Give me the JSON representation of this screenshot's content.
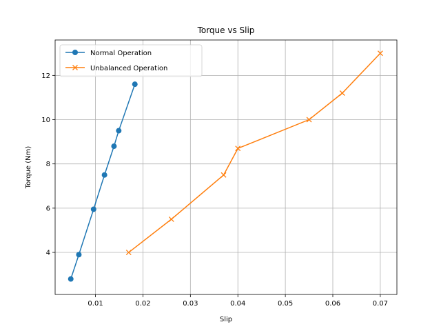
{
  "chart_data": {
    "type": "line",
    "title": "Torque vs Slip",
    "xlabel": "Slip",
    "ylabel": "Torque (Nm)",
    "xlim": [
      0.0015,
      0.0735
    ],
    "ylim": [
      2.1,
      13.6
    ],
    "xticks": [
      0.01,
      0.02,
      0.03,
      0.04,
      0.05,
      0.06,
      0.07
    ],
    "xtick_labels": [
      "0.01",
      "0.02",
      "0.03",
      "0.04",
      "0.05",
      "0.06",
      "0.07"
    ],
    "yticks": [
      4,
      6,
      8,
      10,
      12
    ],
    "ytick_labels": [
      "4",
      "6",
      "8",
      "10",
      "12"
    ],
    "grid": true,
    "legend_position": "top-left",
    "series": [
      {
        "name": "Normal Operation",
        "color": "#1f77b4",
        "marker": "circle",
        "x": [
          0.0048,
          0.0065,
          0.0096,
          0.0119,
          0.0139,
          0.0149,
          0.0183
        ],
        "y": [
          2.8,
          3.9,
          5.95,
          7.5,
          8.8,
          9.5,
          11.6
        ]
      },
      {
        "name": "Unbalanced Operation",
        "color": "#ff7f0e",
        "marker": "x",
        "x": [
          0.017,
          0.026,
          0.037,
          0.04,
          0.055,
          0.062,
          0.07
        ],
        "y": [
          4.0,
          5.5,
          7.5,
          8.7,
          10.0,
          11.2,
          13.0
        ]
      }
    ]
  }
}
